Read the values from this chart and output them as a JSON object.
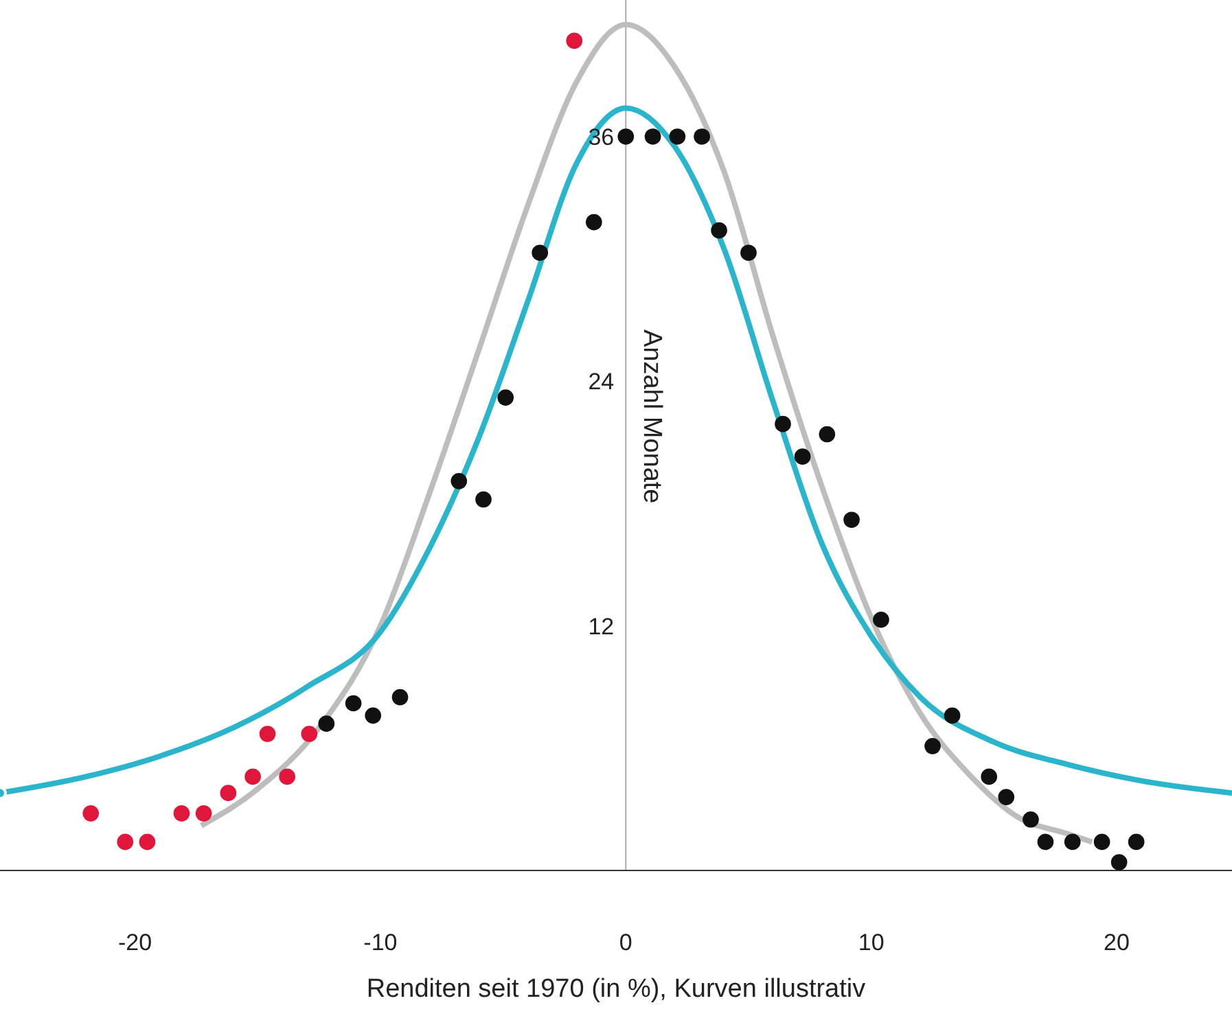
{
  "chart_data": {
    "type": "scatter",
    "xlabel": "Renditen seit 1970 (in %), Kurven illustrativ",
    "ylabel": "Anzahl Monate",
    "xlim": [
      -25.5,
      24.7
    ],
    "ylim": [
      0,
      42.7
    ],
    "xticks": [
      -20,
      -10,
      0,
      10,
      20
    ],
    "yticks": [
      12,
      24,
      36
    ],
    "legend": false,
    "grid": false,
    "marker": "circle",
    "series": [
      {
        "type": "line",
        "color": "#bdbdbd",
        "marker": "none",
        "x": [
          -17.3,
          -15,
          -12.5,
          -10,
          -8,
          -6,
          -4,
          -2,
          0,
          2,
          4,
          6,
          8,
          10,
          12,
          14,
          16,
          18,
          19
        ],
        "values": [
          2.2,
          4,
          7,
          12,
          18.5,
          25.5,
          32.6,
          38.7,
          41.5,
          39.4,
          34.3,
          26.2,
          18.8,
          12.4,
          7.7,
          4.7,
          2.6,
          1.8,
          1.4
        ]
      },
      {
        "type": "line",
        "color": "#2bb5cc",
        "marker": "none",
        "x": [
          -25.5,
          -22,
          -19,
          -16,
          -13,
          -10,
          -8,
          -6,
          -4,
          -2,
          0,
          2,
          4,
          6,
          8,
          10,
          12,
          15,
          18,
          21,
          24.7
        ],
        "values": [
          3.8,
          4.6,
          5.6,
          7,
          9,
          11.7,
          15.8,
          21.2,
          27.9,
          34.7,
          37.4,
          35.5,
          30.5,
          23,
          16,
          11.5,
          8.5,
          6.3,
          5.2,
          4.4,
          3.8
        ]
      },
      {
        "color": "#111111",
        "x": [
          -12.2,
          -11.1,
          -10.3,
          -9.2,
          -6.8,
          -5.8,
          -4.9,
          -3.5,
          -1.3,
          0,
          1.1,
          2.1,
          3.1,
          3.8,
          5,
          6.4,
          7.2,
          8.2,
          9.2,
          10.4,
          12.5,
          13.3,
          14.8,
          15.5,
          16.5,
          17.1,
          18.2,
          19.4,
          20.1,
          20.8
        ],
        "values": [
          7.2,
          8.2,
          7.6,
          8.5,
          19.1,
          18.2,
          23.2,
          30.3,
          31.8,
          36,
          36,
          36,
          36,
          31.4,
          30.3,
          21.9,
          20.3,
          21.4,
          17.2,
          12.3,
          6.1,
          7.6,
          4.6,
          3.6,
          2.5,
          1.4,
          1.4,
          1.4,
          0.4,
          1.4
        ]
      },
      {
        "color": "#e0173a",
        "x": [
          -21.8,
          -20.4,
          -19.5,
          -18.1,
          -17.2,
          -16.2,
          -15.2,
          -14.6,
          -13.8,
          -12.9,
          -2.1
        ],
        "values": [
          2.8,
          1.4,
          1.4,
          2.8,
          2.8,
          3.8,
          4.6,
          6.7,
          4.6,
          6.7,
          40.7
        ]
      }
    ]
  }
}
